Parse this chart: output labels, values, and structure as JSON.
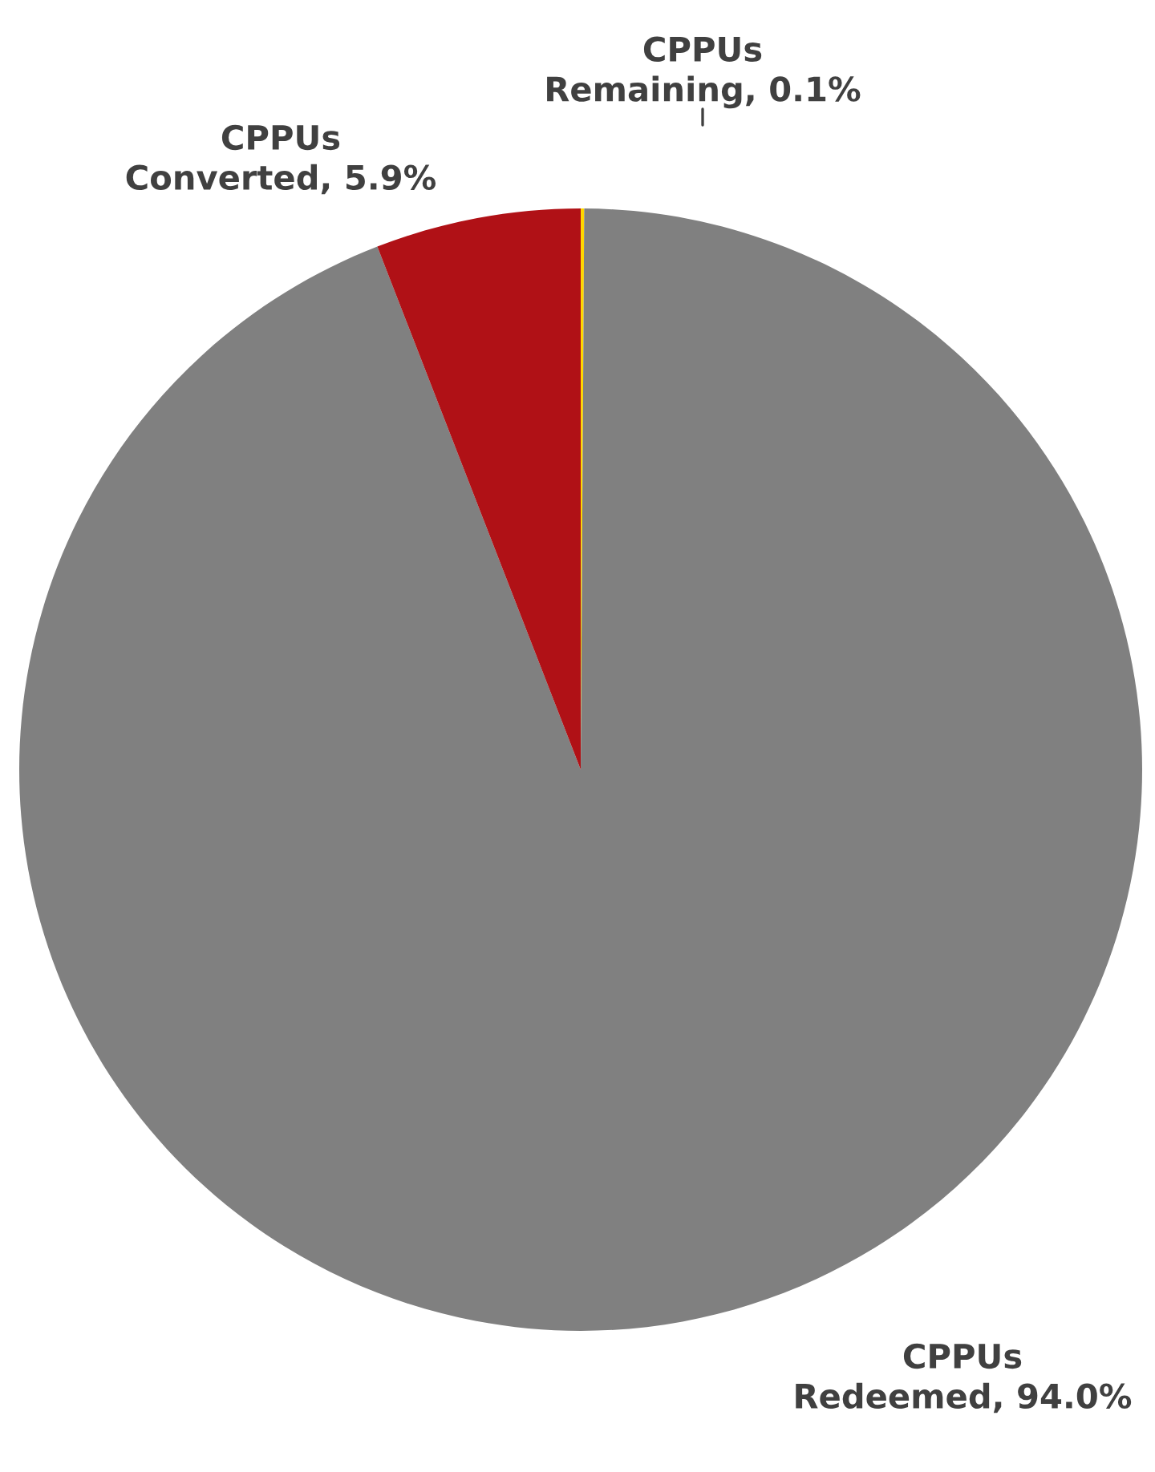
{
  "chart_data": {
    "type": "pie",
    "categories": [
      "CPPUs Remaining",
      "CPPUs Redeemed",
      "CPPUs Converted"
    ],
    "values": [
      0.1,
      94.0,
      5.9
    ],
    "value_labels": [
      "0.1%",
      "94.0%",
      "5.9%"
    ],
    "colors": [
      "#ffd700",
      "#808080",
      "#b01116"
    ]
  }
}
